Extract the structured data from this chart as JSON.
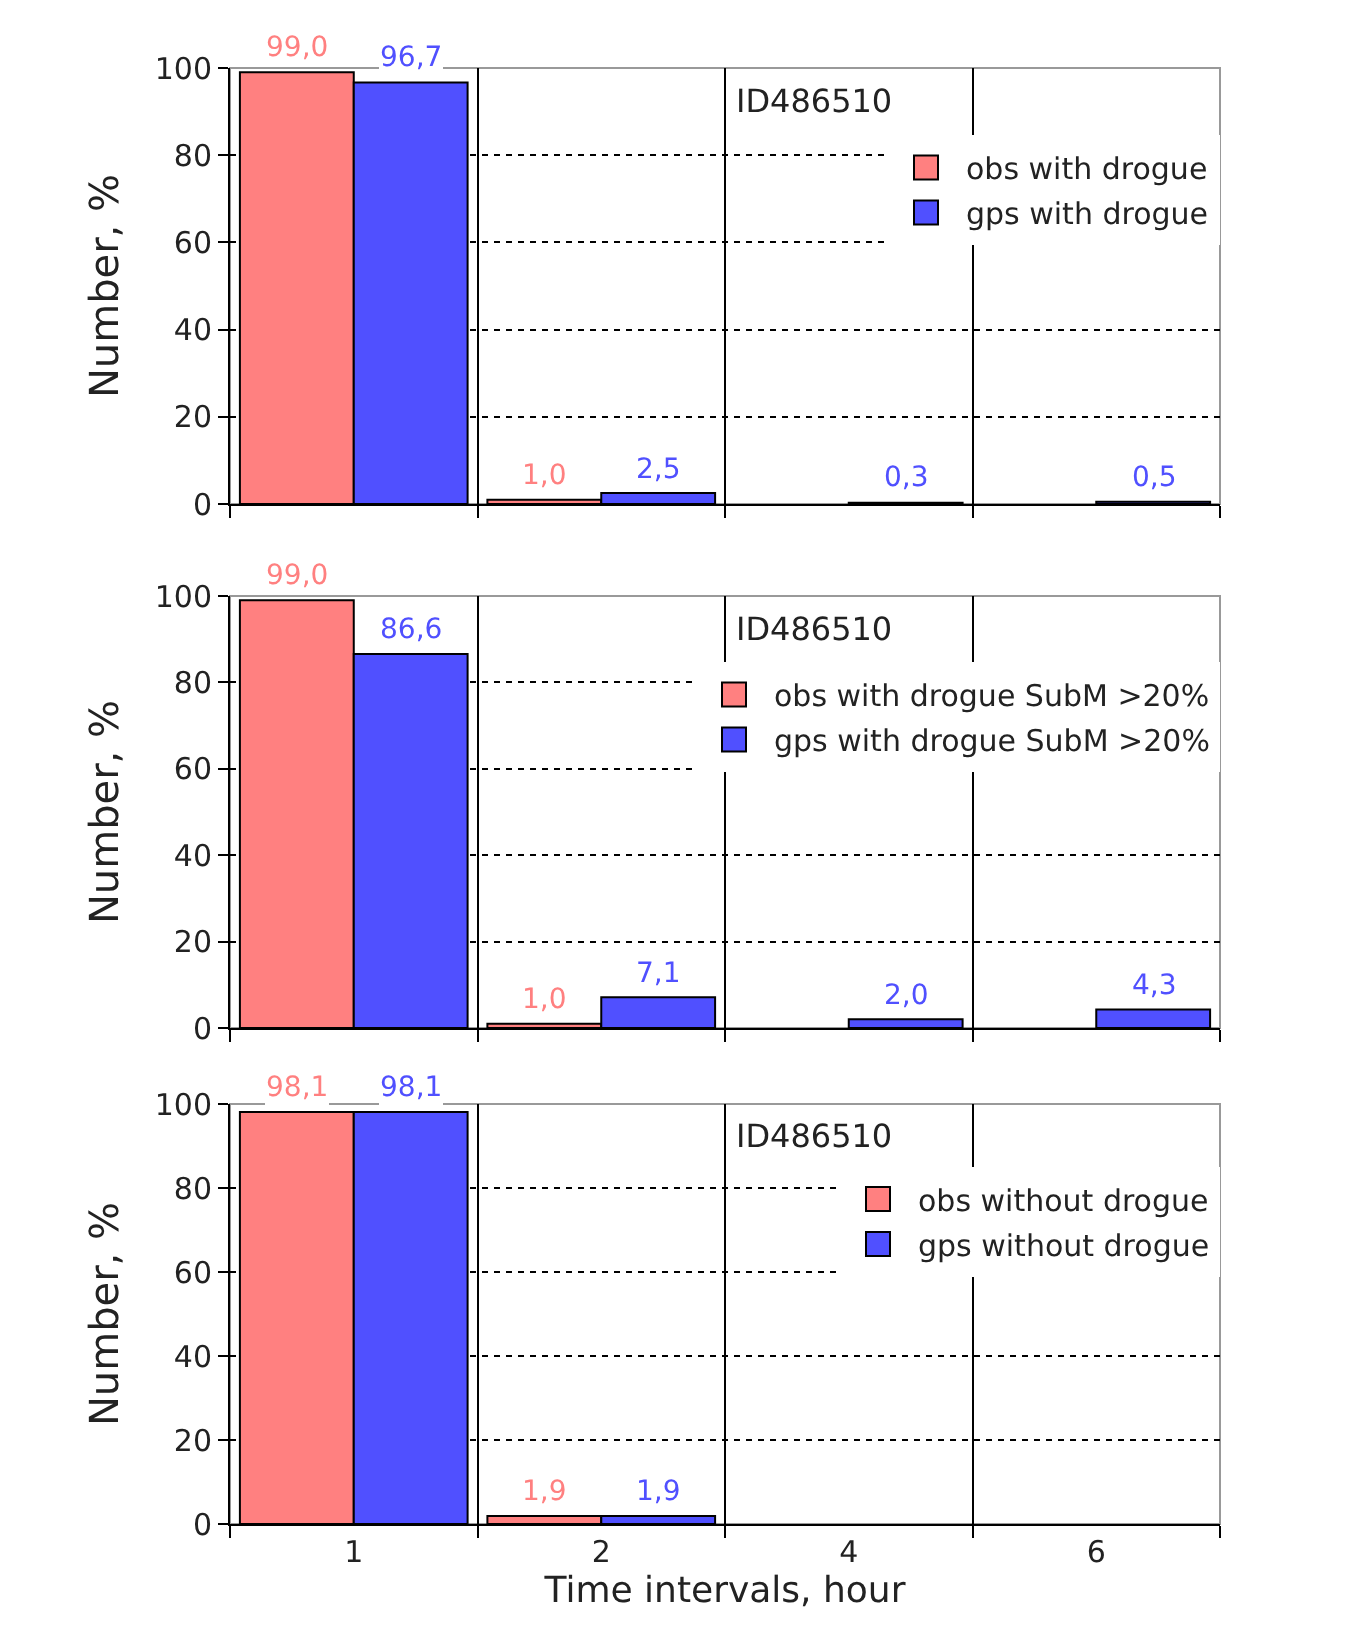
{
  "chart_data": [
    {
      "type": "bar",
      "title": "ID486510",
      "ylabel": "Number, %",
      "categories": [
        "1",
        "2",
        "4",
        "6"
      ],
      "ylim": [
        0,
        100
      ],
      "yticks": [
        0,
        20,
        40,
        60,
        80,
        100
      ],
      "grid": true,
      "legend": "right",
      "tick_labels": "y",
      "series": [
        {
          "name": "obs with drogue",
          "color": "#ff8080",
          "values": [
            99.0,
            1.0,
            null,
            null
          ],
          "value_labels": [
            "99,0",
            "1,0",
            null,
            null
          ]
        },
        {
          "name": "gps with drogue",
          "color": "#5050ff",
          "values": [
            96.7,
            2.5,
            0.3,
            0.5
          ],
          "value_labels": [
            "96,7",
            "2,5",
            "0,3",
            "0,5"
          ]
        }
      ]
    },
    {
      "type": "bar",
      "title": "ID486510",
      "ylabel": "Number, %",
      "categories": [
        "1",
        "2",
        "4",
        "6"
      ],
      "ylim": [
        0,
        100
      ],
      "yticks": [
        0,
        20,
        40,
        60,
        80,
        100
      ],
      "grid": true,
      "legend": "right",
      "tick_labels": "y",
      "series": [
        {
          "name": "obs with drogue SubM >20%",
          "color": "#ff8080",
          "values": [
            99.0,
            1.0,
            null,
            null
          ],
          "value_labels": [
            "99,0",
            "1,0",
            null,
            null
          ]
        },
        {
          "name": "gps with drogue SubM >20%",
          "color": "#5050ff",
          "values": [
            86.6,
            7.1,
            2.0,
            4.3
          ],
          "value_labels": [
            "86,6",
            "7,1",
            "2,0",
            "4,3"
          ]
        }
      ]
    },
    {
      "type": "bar",
      "title": "ID486510",
      "ylabel": "Number, %",
      "xlabel": "Time intervals, hour",
      "categories": [
        "1",
        "2",
        "4",
        "6"
      ],
      "ylim": [
        0,
        100
      ],
      "yticks": [
        0,
        20,
        40,
        60,
        80,
        100
      ],
      "grid": true,
      "legend": "right",
      "series": [
        {
          "name": "obs without drogue",
          "color": "#ff8080",
          "values": [
            98.1,
            1.9,
            null,
            null
          ],
          "value_labels": [
            "98,1",
            "1,9",
            null,
            null
          ]
        },
        {
          "name": "gps without drogue",
          "color": "#5050ff",
          "values": [
            98.1,
            1.9,
            null,
            null
          ],
          "value_labels": [
            "98,1",
            "1,9",
            null,
            null
          ]
        }
      ]
    }
  ]
}
